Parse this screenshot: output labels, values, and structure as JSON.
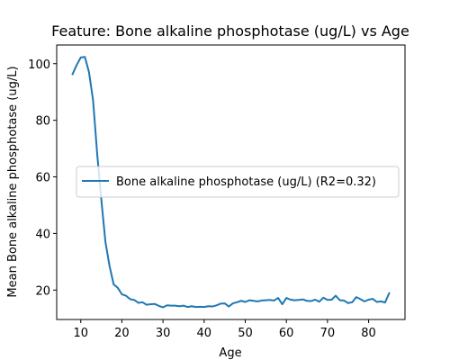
{
  "chart_data": {
    "type": "line",
    "title": "Feature: Bone alkaline phosphotase (ug/L) vs Age",
    "xlabel": "Age",
    "ylabel": "Mean Bone alkaline phosphotase (ug/L)",
    "xlim": [
      4.15,
      88.85
    ],
    "ylim": [
      9.6,
      106.6
    ],
    "xticks": [
      10,
      20,
      30,
      40,
      50,
      60,
      70,
      80
    ],
    "yticks": [
      20,
      40,
      60,
      80,
      100
    ],
    "grid": false,
    "legend_position": "center-right",
    "series": [
      {
        "name": "Bone alkaline phosphotase (ug/L) (R2=0.32)",
        "color": "#1f77b4",
        "x": [
          8,
          9,
          10,
          11,
          12,
          13,
          14,
          15,
          16,
          17,
          18,
          19,
          20,
          21,
          22,
          23,
          24,
          25,
          26,
          27,
          28,
          29,
          30,
          31,
          32,
          33,
          34,
          35,
          36,
          37,
          38,
          39,
          40,
          41,
          42,
          43,
          44,
          45,
          46,
          47,
          48,
          49,
          50,
          51,
          52,
          53,
          54,
          55,
          56,
          57,
          58,
          59,
          60,
          61,
          62,
          63,
          64,
          65,
          66,
          67,
          68,
          69,
          70,
          71,
          72,
          73,
          74,
          75,
          76,
          77,
          78,
          79,
          80,
          81,
          82,
          83,
          84,
          85
        ],
        "y": [
          96.3,
          99.5,
          102.2,
          102.4,
          97.0,
          87.0,
          68.0,
          52.0,
          37.0,
          28.5,
          22.0,
          20.8,
          18.5,
          18.0,
          16.8,
          16.5,
          15.5,
          15.7,
          14.8,
          15.0,
          15.1,
          14.4,
          13.9,
          14.6,
          14.5,
          14.5,
          14.3,
          14.5,
          14.0,
          14.3,
          14.0,
          14.1,
          14.0,
          14.3,
          14.2,
          14.6,
          15.2,
          15.3,
          14.2,
          15.3,
          15.7,
          16.2,
          15.8,
          16.4,
          16.2,
          16.0,
          16.3,
          16.4,
          16.5,
          16.3,
          17.2,
          15.0,
          17.2,
          16.6,
          16.4,
          16.5,
          16.7,
          16.2,
          16.1,
          16.6,
          15.9,
          17.3,
          16.5,
          16.6,
          18.0,
          16.4,
          16.3,
          15.4,
          15.7,
          17.5,
          16.8,
          16.0,
          16.6,
          16.9,
          15.8,
          16.0,
          15.6,
          18.9
        ]
      }
    ]
  }
}
